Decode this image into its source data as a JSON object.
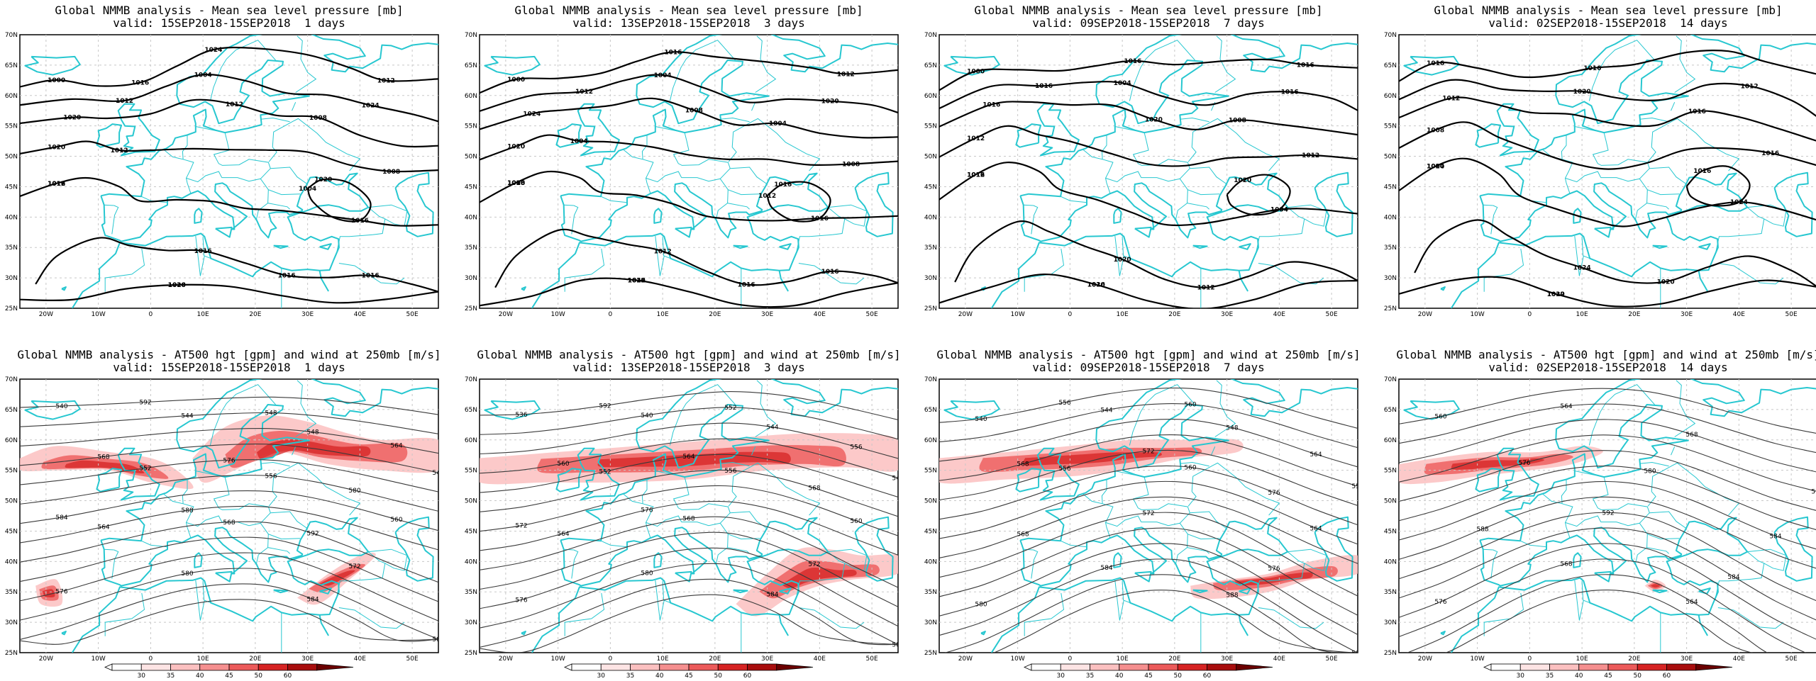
{
  "panels": [
    {
      "id": "mslp-1",
      "title_line1": "Global NMMB analysis - Mean sea level pressure [mb]",
      "title_line2": "valid: 15SEP2018-15SEP2018  1 days",
      "field": "mslp",
      "contour_labels": [
        "1000",
        "1004",
        "1008",
        "1008",
        "1012",
        "1016",
        "1020",
        "1020",
        "1024",
        "1024",
        "1020",
        "1020",
        "1016",
        "1016",
        "1016",
        "1016",
        "1012",
        "1012",
        "1012",
        "1012",
        "1016",
        "1016",
        "1020",
        "1004",
        "1016"
      ]
    },
    {
      "id": "mslp-3",
      "title_line1": "Global NMMB analysis - Mean sea level pressure [mb]",
      "title_line2": "valid: 13SEP2018-15SEP2018  3 days",
      "field": "mslp",
      "contour_labels": [
        "1000",
        "1004",
        "1004",
        "1008",
        "1008",
        "1012",
        "1012",
        "1016",
        "1016",
        "1020",
        "1024",
        "1020",
        "1020",
        "1016",
        "1016",
        "1016",
        "1012",
        "1012",
        "1008",
        "1004",
        "1016",
        "1016",
        "1020",
        "1012"
      ]
    },
    {
      "id": "mslp-7",
      "title_line1": "Global NMMB analysis - Mean sea level pressure [mb]",
      "title_line2": "valid: 09SEP2018-15SEP2018  7 days",
      "field": "mslp",
      "contour_labels": [
        "1000",
        "1004",
        "1008",
        "1012",
        "1016",
        "1020",
        "1020",
        "1020",
        "1016",
        "1016",
        "1016",
        "1012",
        "1012",
        "1012",
        "1016",
        "1004",
        "1016",
        "1016",
        "1020"
      ]
    },
    {
      "id": "mslp-14",
      "title_line1": "Global NMMB analysis - Mean sea level pressure [mb]",
      "title_line2": "valid: 02SEP2018-15SEP2018  14 days",
      "field": "mslp",
      "contour_labels": [
        "1016",
        "1020",
        "1016",
        "1016",
        "1020",
        "1024",
        "1020",
        "1016",
        "1016",
        "1012",
        "1012",
        "1008",
        "1004",
        "1020",
        "1012",
        "1024"
      ]
    },
    {
      "id": "hgt-1",
      "title_line1": "Global NMMB analysis - AT500 hgt [gpm] and wind at 250mb [m/s]",
      "title_line2": "valid: 15SEP2018-15SEP2018  1 days",
      "field": "hgt",
      "contour_labels": [
        "540",
        "544",
        "548",
        "548",
        "552",
        "556",
        "560",
        "564",
        "568",
        "572",
        "576",
        "580",
        "584",
        "588",
        "592",
        "548",
        "564",
        "568",
        "576",
        "580",
        "584",
        "588",
        "592"
      ]
    },
    {
      "id": "hgt-3",
      "title_line1": "Global NMMB analysis - AT500 hgt [gpm] and wind at 250mb [m/s]",
      "title_line2": "valid: 13SEP2018-15SEP2018  3 days",
      "field": "hgt",
      "contour_labels": [
        "536",
        "540",
        "544",
        "548",
        "552",
        "556",
        "560",
        "564",
        "568",
        "572",
        "576",
        "580",
        "584",
        "588",
        "592",
        "552",
        "556",
        "560",
        "564",
        "568",
        "572",
        "576"
      ]
    },
    {
      "id": "hgt-7",
      "title_line1": "Global NMMB analysis - AT500 hgt [gpm] and wind at 250mb [m/s]",
      "title_line2": "valid: 09SEP2018-15SEP2018  7 days",
      "field": "hgt",
      "contour_labels": [
        "540",
        "544",
        "548",
        "552",
        "556",
        "560",
        "564",
        "568",
        "572",
        "576",
        "580",
        "584",
        "588",
        "592",
        "556",
        "560",
        "564",
        "568",
        "572",
        "576"
      ]
    },
    {
      "id": "hgt-14",
      "title_line1": "Global NMMB analysis - AT500 hgt [gpm] and wind at 250mb [m/s]",
      "title_line2": "valid: 02SEP2018-15SEP2018  14 days",
      "field": "hgt",
      "contour_labels": [
        "560",
        "564",
        "568",
        "572",
        "576",
        "580",
        "584",
        "588",
        "592",
        "584",
        "576",
        "568",
        "564",
        "560"
      ]
    }
  ],
  "axes": {
    "x_ticks": [
      "20W",
      "10W",
      "0",
      "10E",
      "20E",
      "30E",
      "40E",
      "50E"
    ],
    "y_ticks": [
      "70N",
      "65N",
      "60N",
      "55N",
      "50N",
      "45N",
      "40N",
      "35N",
      "30N",
      "25N"
    ]
  },
  "colorbar": {
    "labels": [
      "30",
      "35",
      "40",
      "45",
      "50",
      "60"
    ],
    "colors": [
      "#ffffff",
      "#fde4e4",
      "#fbc0c0",
      "#f58f8f",
      "#ec5a5a",
      "#d62323",
      "#a80d0d",
      "#6b0000"
    ]
  },
  "colors": {
    "coastline": "#27c7d0",
    "isobar": "#000000",
    "jet": "#e8302f"
  }
}
